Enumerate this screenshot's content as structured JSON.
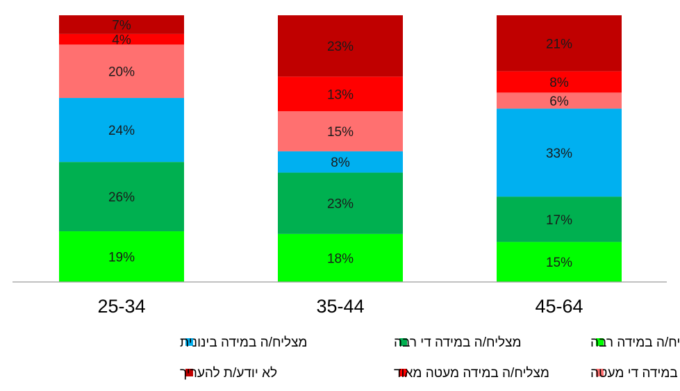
{
  "chart_data": {
    "type": "bar",
    "stacked": true,
    "categories": [
      "25-34",
      "35-44",
      "45-64"
    ],
    "ylim": [
      0,
      100
    ],
    "grid": false,
    "legend_position": "bottom",
    "series": [
      {
        "name": "מצליח/ה במידה רבה",
        "color": "#00ff00",
        "values": [
          19,
          18,
          15
        ],
        "labels": [
          "19%",
          "18%",
          "15%"
        ]
      },
      {
        "name": "מצליח/ה במידה די רבה",
        "color": "#00b050",
        "values": [
          26,
          23,
          17
        ],
        "labels": [
          "26%",
          "23%",
          "17%"
        ]
      },
      {
        "name": "מצליח/ה במידה בינונית",
        "color": "#00b0f0",
        "values": [
          24,
          8,
          33
        ],
        "labels": [
          "24%",
          "8%",
          "33%"
        ]
      },
      {
        "name": "מצליח/ה במידה די מעטה",
        "color": "#ff7070",
        "values": [
          20,
          15,
          6
        ],
        "labels": [
          "20%",
          "15%",
          "6%"
        ]
      },
      {
        "name": "מצליח/ה במידה מעטה מאוד",
        "color": "#ff0000",
        "values": [
          4,
          13,
          8
        ],
        "labels": [
          "4%",
          "13%",
          "8%"
        ]
      },
      {
        "name": "לא יודע/ת להעריך",
        "color": "#c00000",
        "values": [
          7,
          23,
          21
        ],
        "labels": [
          "7%",
          "23%",
          "21%"
        ]
      }
    ]
  }
}
